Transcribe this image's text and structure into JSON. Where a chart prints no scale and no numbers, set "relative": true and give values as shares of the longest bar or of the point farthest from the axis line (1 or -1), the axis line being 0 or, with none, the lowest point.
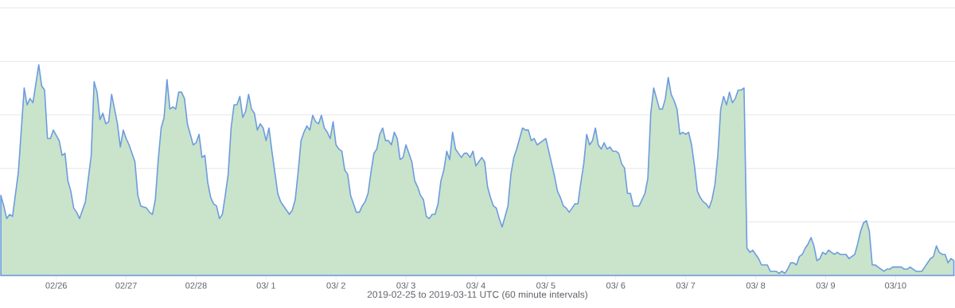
{
  "chart_data": {
    "type": "area",
    "relative": true,
    "grid": "y",
    "tick_labels": "x",
    "xlabel": "2019-02-25 to 2019-03-11 UTC (60 minute intervals)",
    "xlim": [
      "2019-02-25T04:42",
      "2019-03-10T20:24"
    ],
    "xticks": [
      {
        "value": "2019-02-26",
        "label": "02/26"
      },
      {
        "value": "2019-02-27",
        "label": "02/27"
      },
      {
        "value": "2019-02-28",
        "label": "02/28"
      },
      {
        "value": "2019-03-01",
        "label": "03/ 1"
      },
      {
        "value": "2019-03-02",
        "label": "03/ 2"
      },
      {
        "value": "2019-03-03",
        "label": "03/ 3"
      },
      {
        "value": "2019-03-04",
        "label": "03/ 4"
      },
      {
        "value": "2019-03-05",
        "label": "03/ 5"
      },
      {
        "value": "2019-03-06",
        "label": "03/ 6"
      },
      {
        "value": "2019-03-07",
        "label": "03/ 7"
      },
      {
        "value": "2019-03-08",
        "label": "03/ 8"
      },
      {
        "value": "2019-03-09",
        "label": "03/ 9"
      },
      {
        "value": "2019-03-10",
        "label": "03/10"
      }
    ],
    "x": [
      "2019-02-25T05:00",
      "2019-02-25T06:00",
      "2019-02-25T07:00",
      "2019-02-25T08:00",
      "2019-02-25T09:00",
      "2019-02-25T11:00",
      "2019-02-25T13:00",
      "2019-02-25T14:00",
      "2019-02-25T15:00",
      "2019-02-25T16:00",
      "2019-02-25T18:00",
      "2019-02-25T19:00",
      "2019-02-25T20:00",
      "2019-02-25T21:00",
      "2019-02-25T22:00",
      "2019-02-25T23:00",
      "2019-02-26T01:00",
      "2019-02-26T02:00",
      "2019-02-26T03:00",
      "2019-02-26T04:00",
      "2019-02-26T05:00",
      "2019-02-26T06:00",
      "2019-02-26T07:00",
      "2019-02-26T08:00",
      "2019-02-26T10:00",
      "2019-02-26T12:00",
      "2019-02-26T13:00",
      "2019-02-26T14:00",
      "2019-02-26T15:00",
      "2019-02-26T16:00",
      "2019-02-26T17:00",
      "2019-02-26T18:00",
      "2019-02-26T19:00",
      "2019-02-26T21:00",
      "2019-02-26T22:00",
      "2019-02-26T23:00",
      "2019-02-27T00:00",
      "2019-02-27T01:00",
      "2019-02-27T03:00",
      "2019-02-27T04:00",
      "2019-02-27T05:00",
      "2019-02-27T07:00",
      "2019-02-27T08:00",
      "2019-02-27T09:00",
      "2019-02-27T10:00",
      "2019-02-27T11:00",
      "2019-02-27T12:00",
      "2019-02-27T13:00",
      "2019-02-27T14:00",
      "2019-02-27T15:00",
      "2019-02-27T16:00",
      "2019-02-27T17:00",
      "2019-02-27T18:00",
      "2019-02-27T19:00",
      "2019-02-27T20:00",
      "2019-02-27T21:00",
      "2019-02-27T22:00",
      "2019-02-27T23:00",
      "2019-02-28T00:00",
      "2019-02-28T01:00",
      "2019-02-28T02:00",
      "2019-02-28T03:00",
      "2019-02-28T04:00",
      "2019-02-28T05:00",
      "2019-02-28T06:00",
      "2019-02-28T07:00",
      "2019-02-28T08:00",
      "2019-02-28T09:00",
      "2019-02-28T10:00",
      "2019-02-28T11:00",
      "2019-02-28T12:00",
      "2019-02-28T13:00",
      "2019-02-28T14:00",
      "2019-02-28T15:00",
      "2019-02-28T16:00",
      "2019-02-28T17:00",
      "2019-02-28T18:00",
      "2019-02-28T19:00",
      "2019-02-28T20:00",
      "2019-02-28T21:00",
      "2019-02-28T22:00",
      "2019-02-28T23:00",
      "2019-03-01T00:00",
      "2019-03-01T01:00",
      "2019-03-01T02:00",
      "2019-03-01T03:00",
      "2019-03-01T04:00",
      "2019-03-01T05:00",
      "2019-03-01T06:00",
      "2019-03-01T07:00",
      "2019-03-01T08:00",
      "2019-03-01T09:00",
      "2019-03-01T10:00",
      "2019-03-01T11:00",
      "2019-03-01T12:00",
      "2019-03-01T13:00",
      "2019-03-01T14:00",
      "2019-03-01T15:00",
      "2019-03-01T16:00",
      "2019-03-01T17:00",
      "2019-03-01T18:00",
      "2019-03-01T19:00",
      "2019-03-01T20:00",
      "2019-03-01T21:00",
      "2019-03-01T22:00",
      "2019-03-01T23:00",
      "2019-03-02T00:00",
      "2019-03-02T01:00",
      "2019-03-02T02:00",
      "2019-03-02T03:00",
      "2019-03-02T04:00",
      "2019-03-02T05:00",
      "2019-03-02T06:00",
      "2019-03-02T07:00",
      "2019-03-02T08:00",
      "2019-03-02T09:00",
      "2019-03-02T10:00",
      "2019-03-02T11:00",
      "2019-03-02T12:00",
      "2019-03-02T13:00",
      "2019-03-02T14:00",
      "2019-03-02T15:00",
      "2019-03-02T16:00",
      "2019-03-02T17:00",
      "2019-03-02T18:00",
      "2019-03-02T19:00",
      "2019-03-02T20:00",
      "2019-03-02T21:00",
      "2019-03-02T22:00",
      "2019-03-02T23:00",
      "2019-03-03T00:00",
      "2019-03-03T01:00",
      "2019-03-03T02:00",
      "2019-03-03T03:00",
      "2019-03-03T04:00",
      "2019-03-03T05:00",
      "2019-03-03T06:00",
      "2019-03-03T07:00",
      "2019-03-03T08:00",
      "2019-03-03T09:00",
      "2019-03-03T10:00",
      "2019-03-03T11:00",
      "2019-03-03T12:00",
      "2019-03-03T13:00",
      "2019-03-03T14:00",
      "2019-03-03T15:00",
      "2019-03-03T16:00",
      "2019-03-03T17:00",
      "2019-03-03T18:00",
      "2019-03-03T19:00",
      "2019-03-03T20:00",
      "2019-03-03T21:00",
      "2019-03-03T22:00",
      "2019-03-03T23:00",
      "2019-03-04T00:00",
      "2019-03-04T01:00",
      "2019-03-04T02:00",
      "2019-03-04T03:00",
      "2019-03-04T04:00",
      "2019-03-04T05:00",
      "2019-03-04T06:00",
      "2019-03-04T07:00",
      "2019-03-04T08:00",
      "2019-03-04T09:00",
      "2019-03-04T10:00",
      "2019-03-04T11:00",
      "2019-03-04T12:00",
      "2019-03-04T13:00",
      "2019-03-04T14:00",
      "2019-03-04T15:00",
      "2019-03-04T16:00",
      "2019-03-04T17:00",
      "2019-03-04T18:00",
      "2019-03-04T19:00",
      "2019-03-04T20:00",
      "2019-03-04T21:00",
      "2019-03-04T22:00",
      "2019-03-04T23:00",
      "2019-03-05T00:00",
      "2019-03-05T01:00",
      "2019-03-05T02:00",
      "2019-03-05T03:00",
      "2019-03-05T04:00",
      "2019-03-05T05:00",
      "2019-03-05T06:00",
      "2019-03-05T07:00",
      "2019-03-05T08:00",
      "2019-03-05T09:00",
      "2019-03-05T10:00",
      "2019-03-05T11:00",
      "2019-03-05T12:00",
      "2019-03-05T13:00",
      "2019-03-05T14:00",
      "2019-03-05T15:00",
      "2019-03-05T16:00",
      "2019-03-05T17:00",
      "2019-03-05T18:00",
      "2019-03-05T19:00",
      "2019-03-05T20:00",
      "2019-03-05T21:00",
      "2019-03-05T22:00",
      "2019-03-05T23:00",
      "2019-03-06T00:00",
      "2019-03-06T01:00",
      "2019-03-06T02:00",
      "2019-03-06T03:00",
      "2019-03-06T04:00",
      "2019-03-06T05:00",
      "2019-03-06T06:00",
      "2019-03-06T07:00",
      "2019-03-06T08:00",
      "2019-03-06T09:00",
      "2019-03-06T10:00",
      "2019-03-06T11:00",
      "2019-03-06T12:00",
      "2019-03-06T13:00",
      "2019-03-06T14:00",
      "2019-03-06T15:00",
      "2019-03-06T16:00",
      "2019-03-06T17:00",
      "2019-03-06T18:00",
      "2019-03-06T19:00",
      "2019-03-06T20:00",
      "2019-03-06T21:00",
      "2019-03-06T22:00",
      "2019-03-06T23:00",
      "2019-03-07T00:00",
      "2019-03-07T01:00",
      "2019-03-07T02:00",
      "2019-03-07T03:00",
      "2019-03-07T04:00",
      "2019-03-07T05:00",
      "2019-03-07T06:00",
      "2019-03-07T07:00",
      "2019-03-07T08:00",
      "2019-03-07T09:00",
      "2019-03-07T10:00",
      "2019-03-07T11:00",
      "2019-03-07T12:00",
      "2019-03-07T13:00",
      "2019-03-07T14:00",
      "2019-03-07T15:00",
      "2019-03-07T16:00",
      "2019-03-07T17:00",
      "2019-03-07T18:00",
      "2019-03-07T19:00",
      "2019-03-07T20:00",
      "2019-03-07T21:00",
      "2019-03-07T22:00",
      "2019-03-07T23:00",
      "2019-03-08T00:00",
      "2019-03-08T01:00",
      "2019-03-08T02:00",
      "2019-03-08T03:00",
      "2019-03-08T04:00",
      "2019-03-08T05:00",
      "2019-03-08T06:00",
      "2019-03-08T07:00",
      "2019-03-08T08:00",
      "2019-03-08T09:00",
      "2019-03-08T10:00",
      "2019-03-08T11:00",
      "2019-03-08T12:00",
      "2019-03-08T13:00",
      "2019-03-08T14:00",
      "2019-03-08T15:00",
      "2019-03-08T16:00",
      "2019-03-08T17:00",
      "2019-03-08T18:00",
      "2019-03-08T19:00",
      "2019-03-08T20:00",
      "2019-03-08T21:00",
      "2019-03-08T22:00",
      "2019-03-08T23:00",
      "2019-03-09T00:00",
      "2019-03-09T01:00",
      "2019-03-09T02:00",
      "2019-03-09T03:00",
      "2019-03-09T04:00",
      "2019-03-09T05:00",
      "2019-03-09T06:00",
      "2019-03-09T07:00",
      "2019-03-09T08:00",
      "2019-03-09T09:00",
      "2019-03-09T10:00",
      "2019-03-09T11:00",
      "2019-03-09T12:00",
      "2019-03-09T13:00",
      "2019-03-09T14:00",
      "2019-03-09T15:00",
      "2019-03-09T16:00",
      "2019-03-09T17:00",
      "2019-03-09T18:00",
      "2019-03-09T19:00",
      "2019-03-09T20:00",
      "2019-03-09T21:00",
      "2019-03-09T22:00",
      "2019-03-09T23:00",
      "2019-03-10T00:00",
      "2019-03-10T01:00",
      "2019-03-10T02:00",
      "2019-03-10T03:00",
      "2019-03-10T04:00",
      "2019-03-10T05:00",
      "2019-03-10T06:00",
      "2019-03-10T07:00",
      "2019-03-10T08:00",
      "2019-03-10T09:00",
      "2019-03-10T10:00",
      "2019-03-10T11:00",
      "2019-03-10T12:00",
      "2019-03-10T13:00",
      "2019-03-10T14:00",
      "2019-03-10T15:00",
      "2019-03-10T16:00",
      "2019-03-10T17:00",
      "2019-03-10T18:00",
      "2019-03-10T19:00",
      "2019-03-10T20:00"
    ],
    "series": [
      {
        "color": "#6d9be0",
        "values": [
          0.38,
          0.33,
          0.27,
          0.29,
          0.28,
          0.49,
          0.89,
          0.81,
          0.84,
          0.82,
          1.0,
          0.9,
          0.88,
          0.65,
          0.65,
          0.69,
          0.64,
          0.57,
          0.58,
          0.45,
          0.4,
          0.32,
          0.3,
          0.27,
          0.35,
          0.57,
          0.92,
          0.87,
          0.74,
          0.77,
          0.72,
          0.73,
          0.86,
          0.72,
          0.61,
          0.69,
          0.65,
          0.62,
          0.54,
          0.38,
          0.33,
          0.32,
          0.3,
          0.29,
          0.36,
          0.55,
          0.7,
          0.75,
          0.93,
          0.79,
          0.8,
          0.79,
          0.87,
          0.87,
          0.84,
          0.72,
          0.67,
          0.62,
          0.63,
          0.67,
          0.56,
          0.57,
          0.44,
          0.37,
          0.34,
          0.33,
          0.27,
          0.29,
          0.38,
          0.48,
          0.7,
          0.81,
          0.81,
          0.85,
          0.75,
          0.78,
          0.86,
          0.79,
          0.77,
          0.69,
          0.72,
          0.7,
          0.64,
          0.7,
          0.59,
          0.49,
          0.39,
          0.35,
          0.33,
          0.31,
          0.29,
          0.31,
          0.36,
          0.49,
          0.64,
          0.68,
          0.71,
          0.69,
          0.76,
          0.73,
          0.72,
          0.76,
          0.7,
          0.68,
          0.65,
          0.73,
          0.62,
          0.6,
          0.59,
          0.5,
          0.48,
          0.38,
          0.34,
          0.3,
          0.3,
          0.33,
          0.35,
          0.39,
          0.49,
          0.58,
          0.6,
          0.67,
          0.7,
          0.64,
          0.64,
          0.62,
          0.68,
          0.65,
          0.55,
          0.56,
          0.62,
          0.58,
          0.54,
          0.45,
          0.42,
          0.38,
          0.36,
          0.28,
          0.27,
          0.29,
          0.29,
          0.34,
          0.45,
          0.5,
          0.59,
          0.55,
          0.68,
          0.6,
          0.58,
          0.56,
          0.58,
          0.58,
          0.56,
          0.59,
          0.52,
          0.54,
          0.56,
          0.54,
          0.42,
          0.37,
          0.33,
          0.32,
          0.27,
          0.23,
          0.28,
          0.33,
          0.48,
          0.56,
          0.6,
          0.65,
          0.7,
          0.69,
          0.69,
          0.64,
          0.65,
          0.62,
          0.63,
          0.64,
          0.65,
          0.59,
          0.53,
          0.47,
          0.4,
          0.37,
          0.33,
          0.32,
          0.3,
          0.32,
          0.34,
          0.34,
          0.44,
          0.53,
          0.67,
          0.62,
          0.64,
          0.7,
          0.62,
          0.6,
          0.63,
          0.6,
          0.61,
          0.59,
          0.59,
          0.58,
          0.53,
          0.51,
          0.39,
          0.39,
          0.33,
          0.33,
          0.33,
          0.36,
          0.39,
          0.46,
          0.77,
          0.89,
          0.84,
          0.79,
          0.79,
          0.84,
          0.94,
          0.86,
          0.83,
          0.79,
          0.67,
          0.68,
          0.67,
          0.68,
          0.62,
          0.52,
          0.4,
          0.37,
          0.35,
          0.34,
          0.32,
          0.36,
          0.43,
          0.57,
          0.79,
          0.85,
          0.81,
          0.87,
          0.82,
          0.84,
          0.88,
          0.88,
          0.89,
          0.13,
          0.11,
          0.12,
          0.1,
          0.08,
          0.05,
          0.05,
          0.05,
          0.02,
          0.02,
          0.02,
          0.01,
          0.02,
          0.01,
          0.03,
          0.06,
          0.06,
          0.05,
          0.09,
          0.1,
          0.13,
          0.15,
          0.18,
          0.14,
          0.07,
          0.08,
          0.11,
          0.1,
          0.12,
          0.11,
          0.1,
          0.11,
          0.1,
          0.1,
          0.1,
          0.08,
          0.09,
          0.1,
          0.15,
          0.21,
          0.25,
          0.26,
          0.21,
          0.05,
          0.05,
          0.04,
          0.03,
          0.02,
          0.03,
          0.03,
          0.04,
          0.04,
          0.04,
          0.04,
          0.03,
          0.03,
          0.04,
          0.03,
          0.02,
          0.02,
          0.02,
          0.04,
          0.06,
          0.08,
          0.09,
          0.14,
          0.11,
          0.1,
          0.1,
          0.06,
          0.08,
          0.07
        ]
      }
    ]
  }
}
